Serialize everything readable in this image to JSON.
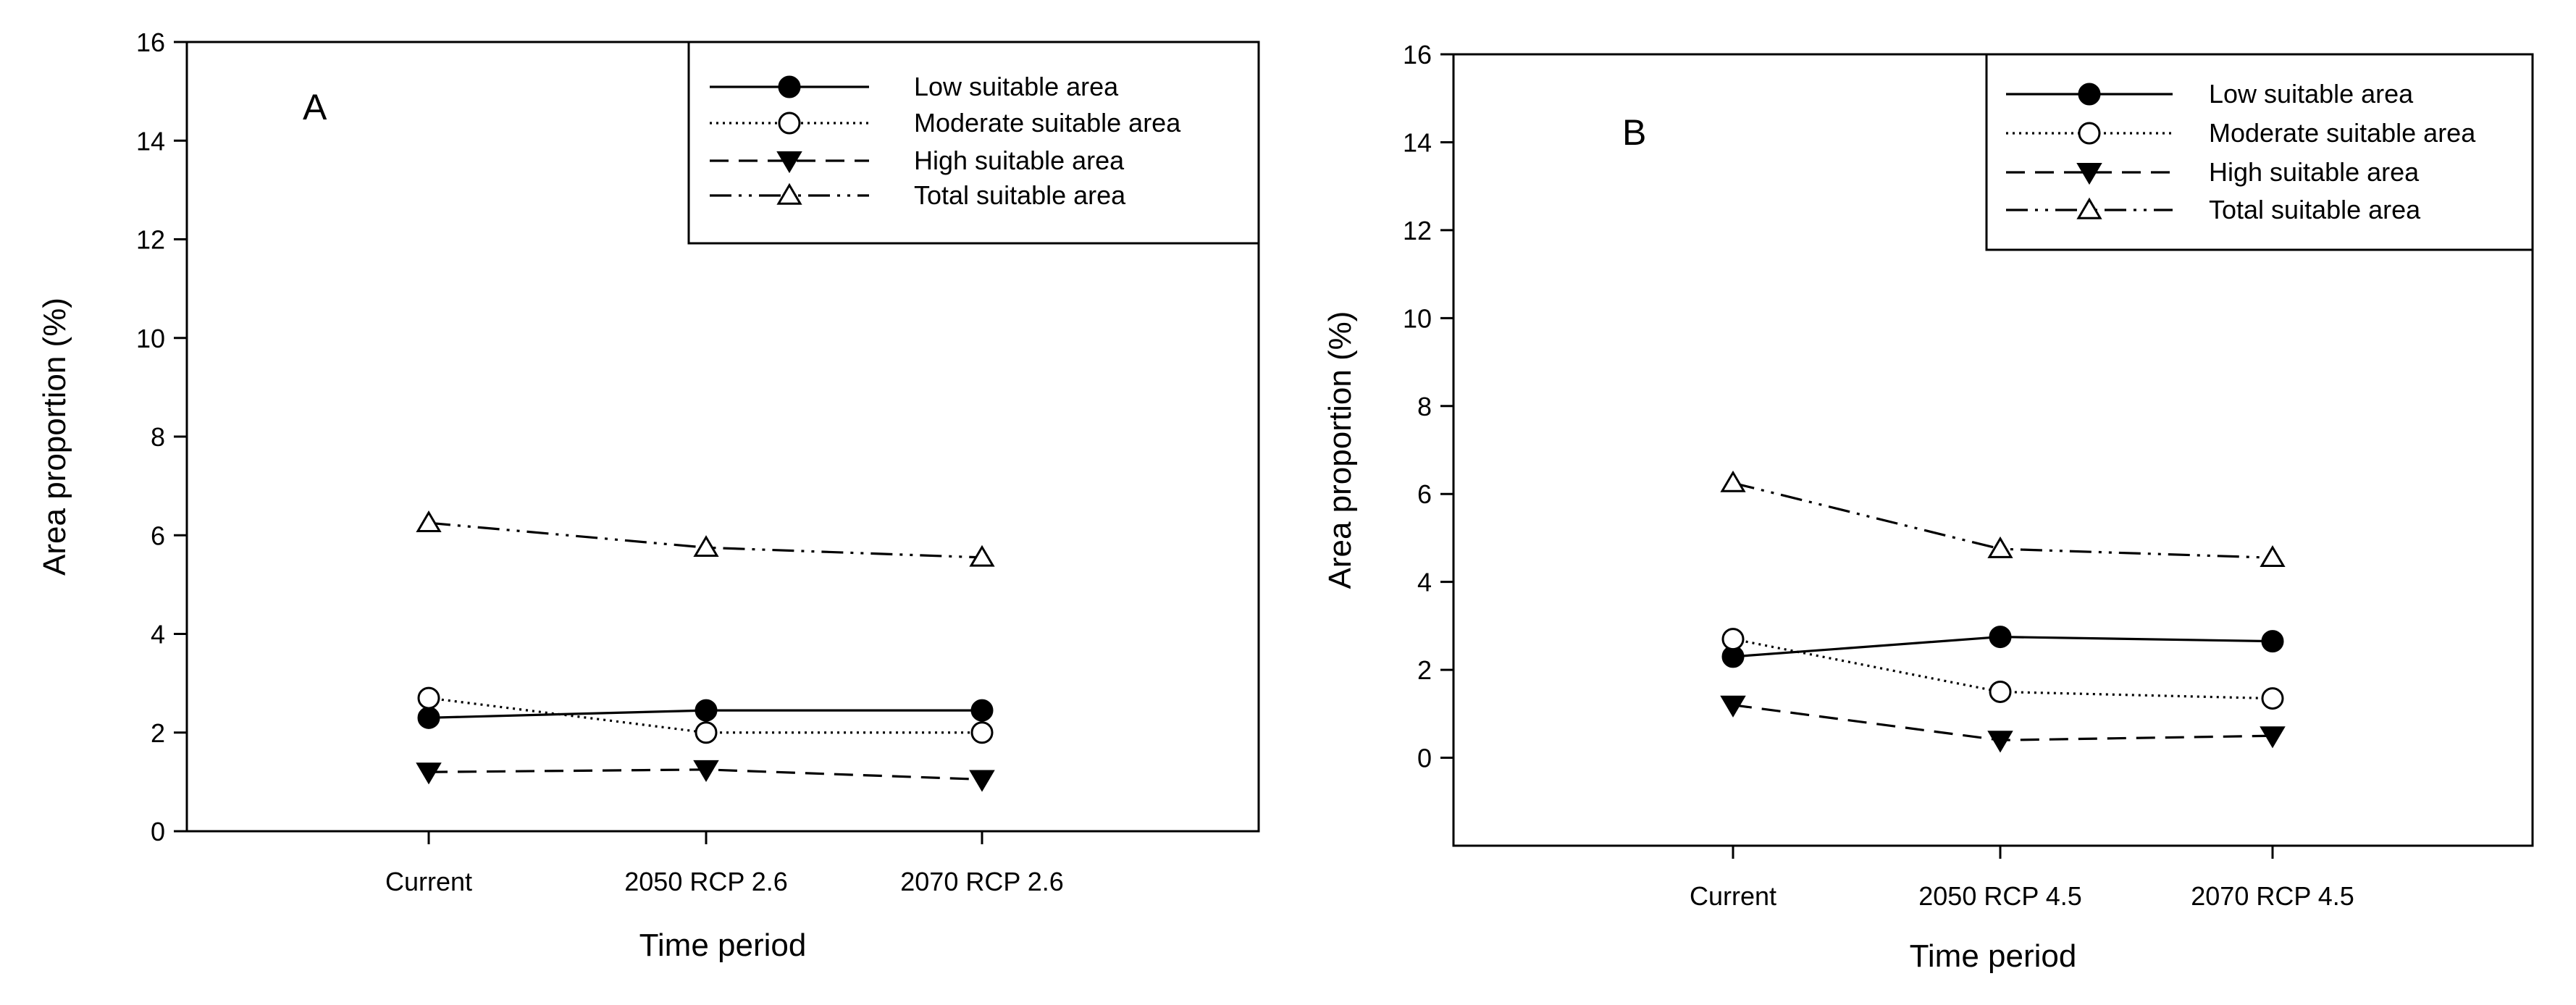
{
  "chart_data": [
    {
      "type": "line",
      "panel_label": "A",
      "xlabel": "Time period",
      "ylabel": "Area proportion (%)",
      "categories": [
        "Current",
        "2050 RCP 2.6",
        "2070 RCP 2.6"
      ],
      "ylim": [
        0,
        16
      ],
      "yticks": [
        "0",
        "2",
        "4",
        "6",
        "8",
        "10",
        "12",
        "14",
        "16"
      ],
      "legend_position": "top-right",
      "grid": false,
      "series": [
        {
          "name": "Low suitable area",
          "values": [
            2.3,
            2.45,
            2.45
          ],
          "style": "solid",
          "marker": "filled-circle"
        },
        {
          "name": "Moderate suitable area",
          "values": [
            2.7,
            2.0,
            2.0
          ],
          "style": "dotted",
          "marker": "open-circle"
        },
        {
          "name": "High suitable area",
          "values": [
            1.2,
            1.25,
            1.05
          ],
          "style": "dashed",
          "marker": "filled-triangle-down"
        },
        {
          "name": "Total suitable area",
          "values": [
            6.25,
            5.75,
            5.55
          ],
          "style": "dash-dot-dot",
          "marker": "open-triangle-up"
        }
      ]
    },
    {
      "type": "line",
      "panel_label": "B",
      "xlabel": "Time period",
      "ylabel": "Area proportion (%)",
      "categories": [
        "Current",
        "2050 RCP 4.5",
        "2070 RCP 4.5"
      ],
      "ylim": [
        -2,
        16
      ],
      "yticks": [
        "0",
        "2",
        "4",
        "6",
        "8",
        "10",
        "12",
        "14",
        "16"
      ],
      "legend_position": "top-right",
      "grid": false,
      "series": [
        {
          "name": "Low suitable area",
          "values": [
            2.3,
            2.75,
            2.65
          ],
          "style": "solid",
          "marker": "filled-circle"
        },
        {
          "name": "Moderate suitable area",
          "values": [
            2.7,
            1.5,
            1.35
          ],
          "style": "dotted",
          "marker": "open-circle"
        },
        {
          "name": "High suitable area",
          "values": [
            1.2,
            0.4,
            0.5
          ],
          "style": "dashed",
          "marker": "filled-triangle-down"
        },
        {
          "name": "Total suitable area",
          "values": [
            6.25,
            4.75,
            4.55
          ],
          "style": "dash-dot-dot",
          "marker": "open-triangle-up"
        }
      ]
    }
  ]
}
